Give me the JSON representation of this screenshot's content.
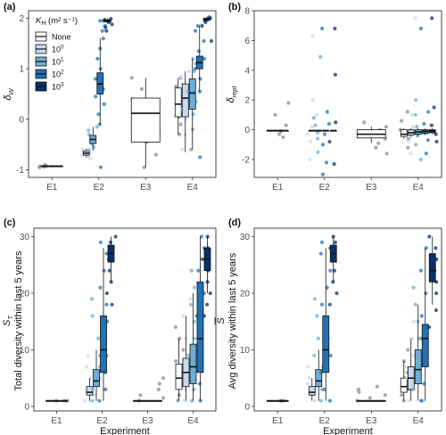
{
  "legend": {
    "title": "K_H (m² s⁻¹)",
    "title_main": "K",
    "title_sub": "H",
    "title_rest": "(m² s⁻¹)",
    "placement": "top-left of panel (a)",
    "items": [
      {
        "label": "None",
        "base": "None",
        "exp": "",
        "color": "#ffffff"
      },
      {
        "label": "10^0",
        "base": "10",
        "exp": "0",
        "color": "#c6dbef"
      },
      {
        "label": "10^1",
        "base": "10",
        "exp": "1",
        "color": "#6baed6"
      },
      {
        "label": "10^2",
        "base": "10",
        "exp": "2",
        "color": "#2171b5"
      },
      {
        "label": "10^3",
        "base": "10",
        "exp": "3",
        "color": "#08306b"
      }
    ]
  },
  "chart_data": [
    {
      "type": "box",
      "panel_label": "(a)",
      "ylabel": "δ_W",
      "ylabel_main": "δ",
      "ylabel_sub": "W",
      "xlabel": "",
      "categories": [
        "E1",
        "E2",
        "E3",
        "E4"
      ],
      "ylim": [
        -1.15,
        2.15
      ],
      "yticks": [
        -1,
        0,
        1,
        2
      ],
      "tick_labels": [
        "-1",
        "0",
        "1",
        "2"
      ],
      "grid": false,
      "boxes": [
        {
          "experiment": "E1",
          "kh": "None",
          "q1": -0.94,
          "median": -0.93,
          "q3": -0.92,
          "whisker_low": -0.95,
          "whisker_high": -0.91,
          "points": [
            -0.95,
            -0.94,
            -0.93,
            -0.92,
            -0.9
          ]
        },
        {
          "experiment": "E2",
          "kh": "10^0",
          "q1": -0.71,
          "median": -0.67,
          "q3": -0.63,
          "whisker_low": -0.76,
          "whisker_high": -0.58,
          "points": [
            -0.78,
            -0.75,
            -0.72,
            -0.69,
            -0.66,
            -0.63,
            -0.6,
            -0.58
          ]
        },
        {
          "experiment": "E2",
          "kh": "10^1",
          "q1": -0.48,
          "median": -0.4,
          "q3": -0.32,
          "whisker_low": -0.62,
          "whisker_high": -0.15,
          "points": [
            -0.62,
            -0.55,
            -0.48,
            -0.42,
            -0.36,
            -0.3,
            -0.22,
            -0.15
          ]
        },
        {
          "experiment": "E2",
          "kh": "10^2",
          "q1": 0.5,
          "median": 0.7,
          "q3": 0.92,
          "whisker_low": -0.1,
          "whisker_high": 1.6,
          "points": [
            -0.95,
            -0.1,
            0.1,
            0.3,
            0.45,
            0.6,
            0.8,
            1.0,
            1.2,
            1.4,
            1.6,
            1.75,
            1.85,
            1.95
          ]
        },
        {
          "experiment": "E2",
          "kh": "10^3",
          "q1": 1.93,
          "median": 1.95,
          "q3": 1.97,
          "whisker_low": 1.9,
          "whisker_high": 2.0,
          "points": [
            1.75,
            1.82,
            1.88,
            1.92,
            1.95,
            1.97,
            1.99
          ]
        },
        {
          "experiment": "E3",
          "kh": "None",
          "q1": -0.45,
          "median": 0.12,
          "q3": 0.42,
          "whisker_low": -0.95,
          "whisker_high": 0.82,
          "points": [
            -0.95,
            -0.7,
            -0.45,
            -0.2,
            0.0,
            0.2,
            0.4,
            0.6,
            0.82
          ]
        },
        {
          "experiment": "E4",
          "kh": "None",
          "q1": 0.05,
          "median": 0.3,
          "q3": 0.62,
          "whisker_low": -0.3,
          "whisker_high": 0.82,
          "points": [
            -0.3,
            -0.1,
            0.05,
            0.2,
            0.35,
            0.5,
            0.65,
            0.82
          ]
        },
        {
          "experiment": "E4",
          "kh": "10^0",
          "q1": 0.05,
          "median": 0.42,
          "q3": 0.7,
          "whisker_low": -0.65,
          "whisker_high": 0.95,
          "points": [
            -0.6,
            -0.3,
            0.0,
            0.2,
            0.4,
            0.55,
            0.7,
            0.85,
            0.95
          ]
        },
        {
          "experiment": "E4",
          "kh": "10^1",
          "q1": 0.2,
          "median": 0.52,
          "q3": 0.8,
          "whisker_low": -0.6,
          "whisker_high": 1.2,
          "points": [
            -0.6,
            -0.2,
            0.1,
            0.35,
            0.55,
            0.75,
            0.95,
            1.1,
            1.2
          ]
        },
        {
          "experiment": "E4",
          "kh": "10^2",
          "q1": 1.0,
          "median": 1.12,
          "q3": 1.25,
          "whisker_low": 0.55,
          "whisker_high": 1.85,
          "points": [
            -0.75,
            0.55,
            0.8,
            1.0,
            1.1,
            1.2,
            1.35,
            1.55,
            1.75,
            1.85
          ]
        },
        {
          "experiment": "E4",
          "kh": "10^3",
          "q1": 1.96,
          "median": 1.98,
          "q3": 2.0,
          "whisker_low": 1.92,
          "whisker_high": 2.02,
          "points": [
            1.55,
            1.85,
            1.92,
            1.96,
            1.98,
            2.0,
            2.02
          ]
        }
      ]
    },
    {
      "type": "box",
      "panel_label": "(b)",
      "ylabel": "δ_rept",
      "ylabel_main": "δ",
      "ylabel_sub": "rept",
      "xlabel": "",
      "categories": [
        "E1",
        "E2",
        "E3",
        "E4"
      ],
      "ylim": [
        -3.2,
        8.0
      ],
      "yticks": [
        -2,
        0,
        2,
        4,
        6,
        8
      ],
      "tick_labels": [
        "-2",
        "0",
        "2",
        "4",
        "6",
        "8"
      ],
      "grid": false,
      "boxes": [
        {
          "experiment": "E1",
          "kh": "None",
          "q1": -0.05,
          "median": -0.05,
          "q3": -0.05,
          "whisker_low": -0.05,
          "whisker_high": -0.05,
          "points": [
            -0.5,
            -0.3,
            -0.1,
            0.3,
            1.0,
            1.8
          ]
        },
        {
          "experiment": "E2",
          "kh": "10^0",
          "q1": -0.05,
          "median": -0.05,
          "q3": -0.05,
          "whisker_low": -0.05,
          "whisker_high": -0.05,
          "points": [
            -2.0,
            -0.8,
            -0.3,
            0.2,
            1.0,
            2.0,
            6.3
          ]
        },
        {
          "experiment": "E2",
          "kh": "10^1",
          "q1": -0.05,
          "median": -0.05,
          "q3": -0.05,
          "whisker_low": -0.05,
          "whisker_high": -0.05,
          "points": [
            -1.5,
            -0.6,
            -0.2,
            0.3,
            0.8,
            4.9
          ]
        },
        {
          "experiment": "E2",
          "kh": "10^2",
          "q1": -0.05,
          "median": -0.05,
          "q3": -0.05,
          "whisker_low": -0.05,
          "whisker_high": -0.05,
          "points": [
            -3.0,
            -2.2,
            -1.0,
            -0.3,
            0.4,
            1.2,
            6.8
          ]
        },
        {
          "experiment": "E2",
          "kh": "10^3",
          "q1": -0.05,
          "median": -0.05,
          "q3": -0.05,
          "whisker_low": -0.05,
          "whisker_high": -0.05,
          "points": [
            -2.3,
            -0.8,
            0.5,
            3.7,
            6.8
          ]
        },
        {
          "experiment": "E3",
          "kh": "None",
          "q1": -0.55,
          "median": -0.3,
          "q3": 0.0,
          "whisker_low": -0.9,
          "whisker_high": 0.2,
          "points": [
            -1.6,
            -1.2,
            -0.9,
            -0.6,
            -0.3,
            0.0,
            0.2,
            0.5
          ]
        },
        {
          "experiment": "E4",
          "kh": "None",
          "q1": -0.45,
          "median": -0.3,
          "q3": 0.0,
          "whisker_low": -0.6,
          "whisker_high": 0.1,
          "points": [
            -1.2,
            -0.6,
            -0.3,
            0.0,
            0.6,
            1.2
          ]
        },
        {
          "experiment": "E4",
          "kh": "10^0",
          "q1": -0.35,
          "median": -0.2,
          "q3": 0.0,
          "whisker_low": -0.5,
          "whisker_high": 0.1,
          "points": [
            -1.6,
            -0.8,
            -0.3,
            0.2,
            1.0,
            7.5
          ]
        },
        {
          "experiment": "E4",
          "kh": "10^1",
          "q1": -0.3,
          "median": -0.15,
          "q3": 0.0,
          "whisker_low": -0.45,
          "whisker_high": 0.1,
          "points": [
            -2.0,
            -1.0,
            -0.4,
            0.2,
            1.0,
            2.0
          ]
        },
        {
          "experiment": "E4",
          "kh": "10^2",
          "q1": -0.25,
          "median": -0.1,
          "q3": 0.0,
          "whisker_low": -0.35,
          "whisker_high": 0.1,
          "points": [
            -1.6,
            -0.7,
            -0.2,
            0.4,
            1.2,
            6.8
          ]
        },
        {
          "experiment": "E4",
          "kh": "10^3",
          "q1": -0.2,
          "median": -0.05,
          "q3": 0.0,
          "whisker_low": -0.3,
          "whisker_high": 0.1,
          "points": [
            -0.8,
            -0.3,
            0.3,
            1.5,
            7.5
          ]
        }
      ]
    },
    {
      "type": "box",
      "panel_label": "(c)",
      "ylabel": "Total diversity within last 5 years",
      "ylabel_symbol": "S",
      "ylabel_symbol_sub": "T",
      "xlabel": "Experiment",
      "categories": [
        "E1",
        "E2",
        "E3",
        "E4"
      ],
      "ylim": [
        -0.8,
        31.5
      ],
      "yticks": [
        0,
        10,
        20,
        30
      ],
      "tick_labels": [
        "0",
        "10",
        "20",
        "30"
      ],
      "grid": false,
      "boxes": [
        {
          "experiment": "E1",
          "kh": "None",
          "q1": 1,
          "median": 1,
          "q3": 1,
          "whisker_low": 1,
          "whisker_high": 1,
          "points": [
            1,
            1,
            1
          ]
        },
        {
          "experiment": "E2",
          "kh": "10^0",
          "q1": 2,
          "median": 2.5,
          "q3": 3.5,
          "whisker_low": 1,
          "whisker_high": 5,
          "points": [
            1,
            2,
            3,
            4,
            5,
            7,
            9
          ]
        },
        {
          "experiment": "E2",
          "kh": "10^1",
          "q1": 3.5,
          "median": 4.5,
          "q3": 6.5,
          "whisker_low": 1,
          "whisker_high": 10,
          "points": [
            1,
            3,
            5,
            7,
            9,
            12,
            16,
            19
          ]
        },
        {
          "experiment": "E2",
          "kh": "10^2",
          "q1": 6,
          "median": 10,
          "q3": 16,
          "whisker_low": 1,
          "whisker_high": 28,
          "points": [
            1,
            3,
            6,
            9,
            12,
            15,
            18,
            21,
            24,
            27,
            29
          ]
        },
        {
          "experiment": "E2",
          "kh": "10^3",
          "q1": 25.5,
          "median": 27,
          "q3": 28.5,
          "whisker_low": 22,
          "whisker_high": 30,
          "points": [
            18,
            20,
            22,
            24,
            26,
            28,
            29,
            30
          ]
        },
        {
          "experiment": "E3",
          "kh": "None",
          "q1": 1,
          "median": 1,
          "q3": 1,
          "whisker_low": 1,
          "whisker_high": 1,
          "points": [
            1,
            1.5,
            2,
            3,
            4,
            5
          ]
        },
        {
          "experiment": "E4",
          "kh": "None",
          "q1": 3,
          "median": 5,
          "q3": 7.5,
          "whisker_low": 1,
          "whisker_high": 12,
          "points": [
            1,
            2,
            4,
            6,
            8,
            10,
            12,
            14
          ]
        },
        {
          "experiment": "E4",
          "kh": "10^0",
          "q1": 3.5,
          "median": 6,
          "q3": 8.5,
          "whisker_low": 1,
          "whisker_high": 16,
          "points": [
            1,
            3,
            5,
            7,
            9,
            12,
            16,
            19
          ]
        },
        {
          "experiment": "E4",
          "kh": "10^1",
          "q1": 4,
          "median": 7,
          "q3": 11,
          "whisker_low": 1,
          "whisker_high": 20,
          "points": [
            1,
            3,
            6,
            9,
            12,
            15,
            18,
            21,
            24
          ]
        },
        {
          "experiment": "E4",
          "kh": "10^2",
          "q1": 6,
          "median": 12,
          "q3": 22,
          "whisker_low": 1,
          "whisker_high": 30,
          "points": [
            1,
            4,
            8,
            12,
            16,
            20,
            24,
            28,
            30
          ]
        },
        {
          "experiment": "E4",
          "kh": "10^3",
          "q1": 24,
          "median": 26,
          "q3": 28,
          "whisker_low": 20,
          "whisker_high": 30,
          "points": [
            16,
            18,
            20,
            22,
            24,
            26,
            28,
            30
          ]
        }
      ]
    },
    {
      "type": "box",
      "panel_label": "(d)",
      "ylabel": "Avg diversity within last 5 years",
      "ylabel_symbol": "S",
      "xlabel": "Experiment",
      "categories": [
        "E1",
        "E2",
        "E3",
        "E4"
      ],
      "ylim": [
        -0.8,
        31.5
      ],
      "yticks": [
        0,
        10,
        20,
        30
      ],
      "tick_labels": [
        "0",
        "10",
        "20",
        "30"
      ],
      "grid": false,
      "boxes": [
        {
          "experiment": "E1",
          "kh": "None",
          "q1": 1,
          "median": 1,
          "q3": 1,
          "whisker_low": 1,
          "whisker_high": 1,
          "points": [
            1,
            1,
            1
          ]
        },
        {
          "experiment": "E2",
          "kh": "10^0",
          "q1": 2,
          "median": 2.5,
          "q3": 3.5,
          "whisker_low": 1,
          "whisker_high": 5,
          "points": [
            1,
            2,
            3,
            4,
            5,
            7
          ]
        },
        {
          "experiment": "E2",
          "kh": "10^1",
          "q1": 3.5,
          "median": 4.5,
          "q3": 6.5,
          "whisker_low": 1,
          "whisker_high": 10,
          "points": [
            1,
            3,
            5,
            7,
            9,
            12,
            16,
            19
          ]
        },
        {
          "experiment": "E2",
          "kh": "10^2",
          "q1": 6,
          "median": 10,
          "q3": 16,
          "whisker_low": 1,
          "whisker_high": 28,
          "points": [
            1,
            3,
            6,
            9,
            12,
            15,
            18,
            21,
            24,
            27,
            29
          ]
        },
        {
          "experiment": "E2",
          "kh": "10^3",
          "q1": 25.5,
          "median": 27,
          "q3": 28.5,
          "whisker_low": 22,
          "whisker_high": 30,
          "points": [
            18,
            20,
            22,
            24,
            26,
            28,
            29,
            30
          ]
        },
        {
          "experiment": "E3",
          "kh": "None",
          "q1": 1,
          "median": 1,
          "q3": 1,
          "whisker_low": 1,
          "whisker_high": 1,
          "points": [
            1,
            1.5,
            2,
            2.5,
            3,
            3.5
          ]
        },
        {
          "experiment": "E4",
          "kh": "None",
          "q1": 2.5,
          "median": 3.5,
          "q3": 5,
          "whisker_low": 1,
          "whisker_high": 8,
          "points": [
            1,
            2,
            3,
            4,
            5,
            6,
            8,
            10
          ]
        },
        {
          "experiment": "E4",
          "kh": "10^0",
          "q1": 3,
          "median": 5,
          "q3": 7,
          "whisker_low": 1,
          "whisker_high": 12,
          "points": [
            1,
            3,
            5,
            7,
            9,
            12,
            15
          ]
        },
        {
          "experiment": "E4",
          "kh": "10^1",
          "q1": 4,
          "median": 6.5,
          "q3": 10,
          "whisker_low": 1,
          "whisker_high": 18,
          "points": [
            1,
            3,
            6,
            9,
            12,
            15,
            18,
            21
          ]
        },
        {
          "experiment": "E4",
          "kh": "10^2",
          "q1": 7,
          "median": 12,
          "q3": 14.5,
          "whisker_low": 1,
          "whisker_high": 28,
          "points": [
            1,
            4,
            8,
            12,
            16,
            20,
            24,
            28
          ]
        },
        {
          "experiment": "E4",
          "kh": "10^3",
          "q1": 22,
          "median": 24,
          "q3": 27,
          "whisker_low": 18,
          "whisker_high": 30,
          "points": [
            14,
            17,
            20,
            22,
            24,
            26,
            28,
            30
          ]
        }
      ]
    }
  ]
}
